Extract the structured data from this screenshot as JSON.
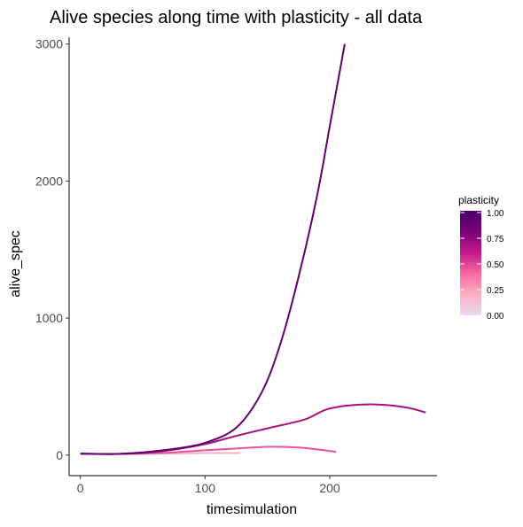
{
  "chart_data": {
    "type": "line",
    "title": "Alive species along time with plasticity - all data",
    "xlabel": "timesimulation",
    "ylabel": "alive_spec",
    "xlim": [
      -9,
      286
    ],
    "ylim": [
      -150,
      3050
    ],
    "x_ticks": [
      0,
      100,
      200
    ],
    "x_tick_labels": [
      "0",
      "100",
      "200"
    ],
    "y_ticks": [
      0,
      1000,
      2000,
      3000
    ],
    "y_tick_labels": [
      "0",
      "1000",
      "2000",
      "3000"
    ],
    "grid": false,
    "legend": {
      "title": "plasticity",
      "position": "right",
      "type": "colorbar",
      "range": [
        0,
        1
      ],
      "tick_values": [
        0,
        0.25,
        0.5,
        0.75,
        1
      ],
      "tick_labels": [
        "0.00",
        "0.25",
        "0.50",
        "0.75",
        "1.00"
      ],
      "color_stops": [
        "#e6dcef",
        "#fdb0c0",
        "#f768a1",
        "#c51b8a",
        "#7a0177",
        "#49006a"
      ]
    },
    "series": [
      {
        "plasticity": 0.25,
        "color": "#fcaebb",
        "x": [
          0,
          20,
          40,
          60,
          80,
          100,
          128
        ],
        "y": [
          10,
          8,
          8,
          10,
          12,
          15,
          15
        ]
      },
      {
        "plasticity": 0.5,
        "color": "#e7529e",
        "x": [
          0,
          25,
          50,
          75,
          100,
          125,
          150,
          175,
          200,
          205
        ],
        "y": [
          10,
          8,
          12,
          20,
          35,
          48,
          60,
          55,
          30,
          22
        ]
      },
      {
        "plasticity": 0.75,
        "color": "#a8107f",
        "x": [
          0,
          25,
          50,
          75,
          100,
          125,
          150,
          180,
          200,
          230,
          260,
          277
        ],
        "y": [
          10,
          8,
          15,
          40,
          80,
          140,
          195,
          260,
          340,
          370,
          350,
          310
        ]
      },
      {
        "plasticity": 1.0,
        "color": "#600070",
        "x": [
          0,
          25,
          50,
          75,
          100,
          125,
          145,
          160,
          175,
          190,
          200,
          210,
          212
        ],
        "y": [
          10,
          8,
          20,
          45,
          90,
          200,
          450,
          800,
          1300,
          1900,
          2400,
          2900,
          3000
        ]
      }
    ]
  }
}
